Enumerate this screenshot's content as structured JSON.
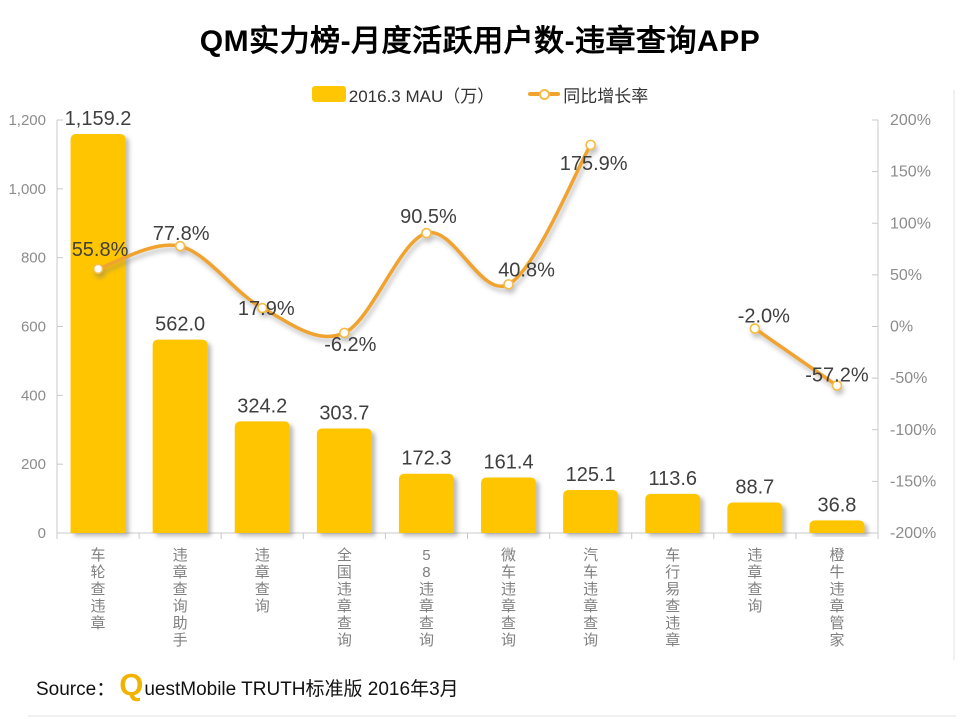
{
  "source": {
    "prefix": "Source：",
    "logo_q": "Q",
    "rest": "uestMobile TRUTH标准版 2016年3月"
  },
  "colors": {
    "bar": "#FFC603",
    "line": "#F0A32F",
    "marker_ring": "#F6BC45",
    "axis_text": "#8C8C8C",
    "category_text": "#808080",
    "data_label": "#3F3F3F",
    "axis_line": "#C8C8C8",
    "frame_line": "#E3E3E3",
    "logo_q": "#F0B400"
  },
  "chart_data": {
    "type": "combo (bar + line)",
    "title": "QM实力榜-月度活跃用户数-违章查询APP",
    "categories": [
      "车轮查违章",
      "违章查询助手",
      "违章查询",
      "全国违章查询",
      "58违章查询",
      "微车违章查询",
      "汽车违章查询",
      "车行易查违章",
      "违章查询",
      "橙牛违章管家"
    ],
    "series": [
      {
        "name": "2016.3 MAU（万）",
        "type": "bar",
        "axis": "left",
        "color": "#FFC603",
        "values": [
          1159.2,
          562.0,
          324.2,
          303.7,
          172.3,
          161.4,
          125.1,
          113.6,
          88.7,
          36.8
        ],
        "labels": [
          "1,159.2",
          "562.0",
          "324.2",
          "303.7",
          "172.3",
          "161.4",
          "125.1",
          "113.6",
          "88.7",
          "36.8"
        ]
      },
      {
        "name": "同比增长率",
        "type": "line",
        "axis": "right",
        "color": "#F0A32F",
        "values": [
          55.8,
          77.8,
          17.9,
          -6.2,
          90.5,
          40.8,
          175.9,
          null,
          -2.0,
          -57.2
        ],
        "labels": [
          "55.8%",
          "77.8%",
          "17.9%",
          "-6.2%",
          "90.5%",
          "40.8%",
          "175.9%",
          null,
          "-2.0%",
          "-57.2%"
        ]
      }
    ],
    "left_axis": {
      "min": 0,
      "max": 1200,
      "step": 200,
      "ticks": [
        "0",
        "200",
        "400",
        "600",
        "800",
        "1,000",
        "1,200"
      ]
    },
    "right_axis": {
      "min": -200,
      "max": 200,
      "step": 50,
      "ticks": [
        "-200%",
        "-150%",
        "-100%",
        "-50%",
        "0%",
        "50%",
        "100%",
        "150%",
        "200%"
      ]
    },
    "legend_position": "top",
    "grid": false,
    "smooth_line": true,
    "label_offsets": [
      [
        2,
        -13
      ],
      [
        1,
        -6
      ],
      [
        4,
        7
      ],
      [
        6,
        18
      ],
      [
        2,
        -10
      ],
      [
        18,
        -8
      ],
      [
        3,
        25
      ],
      null,
      [
        9,
        -6
      ],
      [
        0,
        -4
      ]
    ]
  }
}
